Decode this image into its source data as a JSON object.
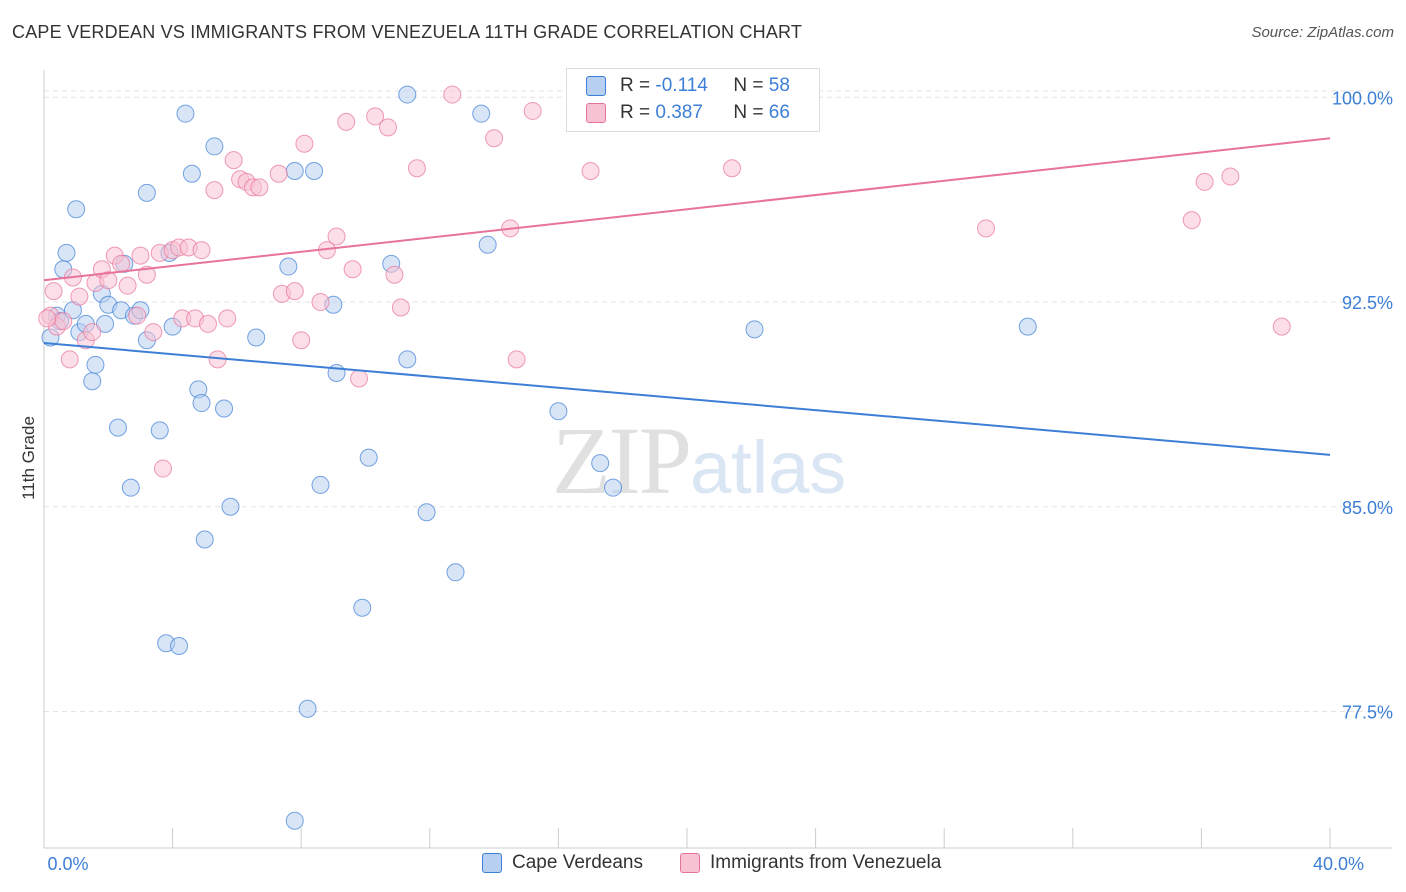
{
  "title": "CAPE VERDEAN VS IMMIGRANTS FROM VENEZUELA 11TH GRADE CORRELATION CHART",
  "source": "Source: ZipAtlas.com",
  "watermark": {
    "zip": "ZIP",
    "atlas": "atlas"
  },
  "colors": {
    "blue": "#3d7fd6",
    "blue_fill": "#b7cff0",
    "pink": "#e8739a",
    "pink_fill": "#f7c3d3",
    "grid": "#e3e3e3"
  },
  "stats": {
    "blue": {
      "r_label": "R =",
      "r_value": "-0.114",
      "n_label": "N =",
      "n_value": "58"
    },
    "pink": {
      "r_label": "R =",
      "r_value": "0.387",
      "n_label": "N =",
      "n_value": "66"
    }
  },
  "legend": {
    "blue": "Cape Verdeans",
    "pink": "Immigrants from Venezuela"
  },
  "chart_data": {
    "type": "scatter",
    "title": "CAPE VERDEAN VS IMMIGRANTS FROM VENEZUELA 11TH GRADE CORRELATION CHART",
    "xlabel": "",
    "ylabel": "11th Grade",
    "xlim": [
      0,
      40
    ],
    "ylim": [
      72.5,
      101.0
    ],
    "x_tick_labels": [
      {
        "value": 0,
        "label": "0.0%"
      },
      {
        "value": 40,
        "label": "40.0%"
      }
    ],
    "y_tick_labels": [
      {
        "value": 100.0,
        "label": "100.0%"
      },
      {
        "value": 92.5,
        "label": "92.5%"
      },
      {
        "value": 85.0,
        "label": "85.0%"
      },
      {
        "value": 77.5,
        "label": "77.5%"
      }
    ],
    "series": [
      {
        "name": "Cape Verdeans",
        "color": "#3d7fd6",
        "trend": {
          "x": [
            0,
            40
          ],
          "y": [
            91.0,
            86.9
          ]
        },
        "points": [
          [
            0.2,
            91.2
          ],
          [
            0.4,
            92.0
          ],
          [
            0.5,
            91.8
          ],
          [
            0.6,
            93.7
          ],
          [
            0.7,
            94.3
          ],
          [
            0.9,
            92.2
          ],
          [
            1.0,
            95.9
          ],
          [
            1.1,
            91.4
          ],
          [
            1.3,
            91.7
          ],
          [
            1.5,
            89.6
          ],
          [
            1.6,
            90.2
          ],
          [
            1.8,
            92.8
          ],
          [
            1.9,
            91.7
          ],
          [
            2.0,
            92.4
          ],
          [
            2.3,
            87.9
          ],
          [
            2.4,
            92.2
          ],
          [
            2.5,
            93.9
          ],
          [
            2.7,
            85.7
          ],
          [
            2.8,
            92.0
          ],
          [
            3.0,
            92.2
          ],
          [
            3.2,
            91.1
          ],
          [
            3.2,
            96.5
          ],
          [
            3.6,
            87.8
          ],
          [
            3.8,
            80.0
          ],
          [
            3.9,
            94.3
          ],
          [
            4.0,
            91.6
          ],
          [
            4.2,
            79.9
          ],
          [
            4.4,
            99.4
          ],
          [
            4.6,
            97.2
          ],
          [
            4.8,
            89.3
          ],
          [
            4.9,
            88.8
          ],
          [
            5.0,
            83.8
          ],
          [
            5.3,
            98.2
          ],
          [
            5.6,
            88.6
          ],
          [
            5.8,
            85.0
          ],
          [
            6.6,
            91.2
          ],
          [
            7.6,
            93.8
          ],
          [
            7.8,
            97.3
          ],
          [
            8.2,
            77.6
          ],
          [
            8.4,
            97.3
          ],
          [
            8.6,
            85.8
          ],
          [
            9.0,
            92.4
          ],
          [
            9.1,
            89.9
          ],
          [
            9.9,
            81.3
          ],
          [
            10.1,
            86.8
          ],
          [
            10.8,
            93.9
          ],
          [
            11.3,
            90.4
          ],
          [
            11.3,
            100.1
          ],
          [
            11.9,
            84.8
          ],
          [
            12.8,
            82.6
          ],
          [
            13.6,
            99.4
          ],
          [
            13.8,
            94.6
          ],
          [
            16.0,
            88.5
          ],
          [
            17.3,
            86.6
          ],
          [
            17.7,
            85.7
          ],
          [
            22.1,
            91.5
          ],
          [
            30.6,
            91.6
          ],
          [
            7.8,
            73.5
          ]
        ]
      },
      {
        "name": "Immigrants from Venezuela",
        "color": "#e8739a",
        "trend": {
          "x": [
            0,
            40
          ],
          "y": [
            93.3,
            98.5
          ]
        },
        "points": [
          [
            0.2,
            92.0
          ],
          [
            0.3,
            92.9
          ],
          [
            0.4,
            91.6
          ],
          [
            0.6,
            91.8
          ],
          [
            0.8,
            90.4
          ],
          [
            0.9,
            93.4
          ],
          [
            1.1,
            92.7
          ],
          [
            1.3,
            91.1
          ],
          [
            1.5,
            91.4
          ],
          [
            1.6,
            93.2
          ],
          [
            1.8,
            93.7
          ],
          [
            2.0,
            93.3
          ],
          [
            2.2,
            94.2
          ],
          [
            2.4,
            93.9
          ],
          [
            2.6,
            93.1
          ],
          [
            2.9,
            92.0
          ],
          [
            3.0,
            94.2
          ],
          [
            3.2,
            93.5
          ],
          [
            3.4,
            91.4
          ],
          [
            3.6,
            94.3
          ],
          [
            3.7,
            86.4
          ],
          [
            4.0,
            94.4
          ],
          [
            4.2,
            94.5
          ],
          [
            4.3,
            91.9
          ],
          [
            4.5,
            94.5
          ],
          [
            4.7,
            91.9
          ],
          [
            4.9,
            94.4
          ],
          [
            5.1,
            91.7
          ],
          [
            5.3,
            96.6
          ],
          [
            5.4,
            90.4
          ],
          [
            5.7,
            91.9
          ],
          [
            5.9,
            97.7
          ],
          [
            6.1,
            97.0
          ],
          [
            6.3,
            96.9
          ],
          [
            6.5,
            96.7
          ],
          [
            6.7,
            96.7
          ],
          [
            7.3,
            97.2
          ],
          [
            7.4,
            92.8
          ],
          [
            7.8,
            92.9
          ],
          [
            8.0,
            91.1
          ],
          [
            8.1,
            98.3
          ],
          [
            8.6,
            92.5
          ],
          [
            8.8,
            94.4
          ],
          [
            9.1,
            94.9
          ],
          [
            9.4,
            99.1
          ],
          [
            9.6,
            93.7
          ],
          [
            9.8,
            89.7
          ],
          [
            10.3,
            99.3
          ],
          [
            10.7,
            98.9
          ],
          [
            10.9,
            93.5
          ],
          [
            11.1,
            92.3
          ],
          [
            11.6,
            97.4
          ],
          [
            12.7,
            100.1
          ],
          [
            14.0,
            98.5
          ],
          [
            14.5,
            95.2
          ],
          [
            14.7,
            90.4
          ],
          [
            15.2,
            99.5
          ],
          [
            17.0,
            97.3
          ],
          [
            21.4,
            97.4
          ],
          [
            22.2,
            100.1
          ],
          [
            29.3,
            95.2
          ],
          [
            35.7,
            95.5
          ],
          [
            36.1,
            96.9
          ],
          [
            36.9,
            97.1
          ],
          [
            38.5,
            91.6
          ],
          [
            0.1,
            91.9
          ]
        ]
      }
    ]
  }
}
